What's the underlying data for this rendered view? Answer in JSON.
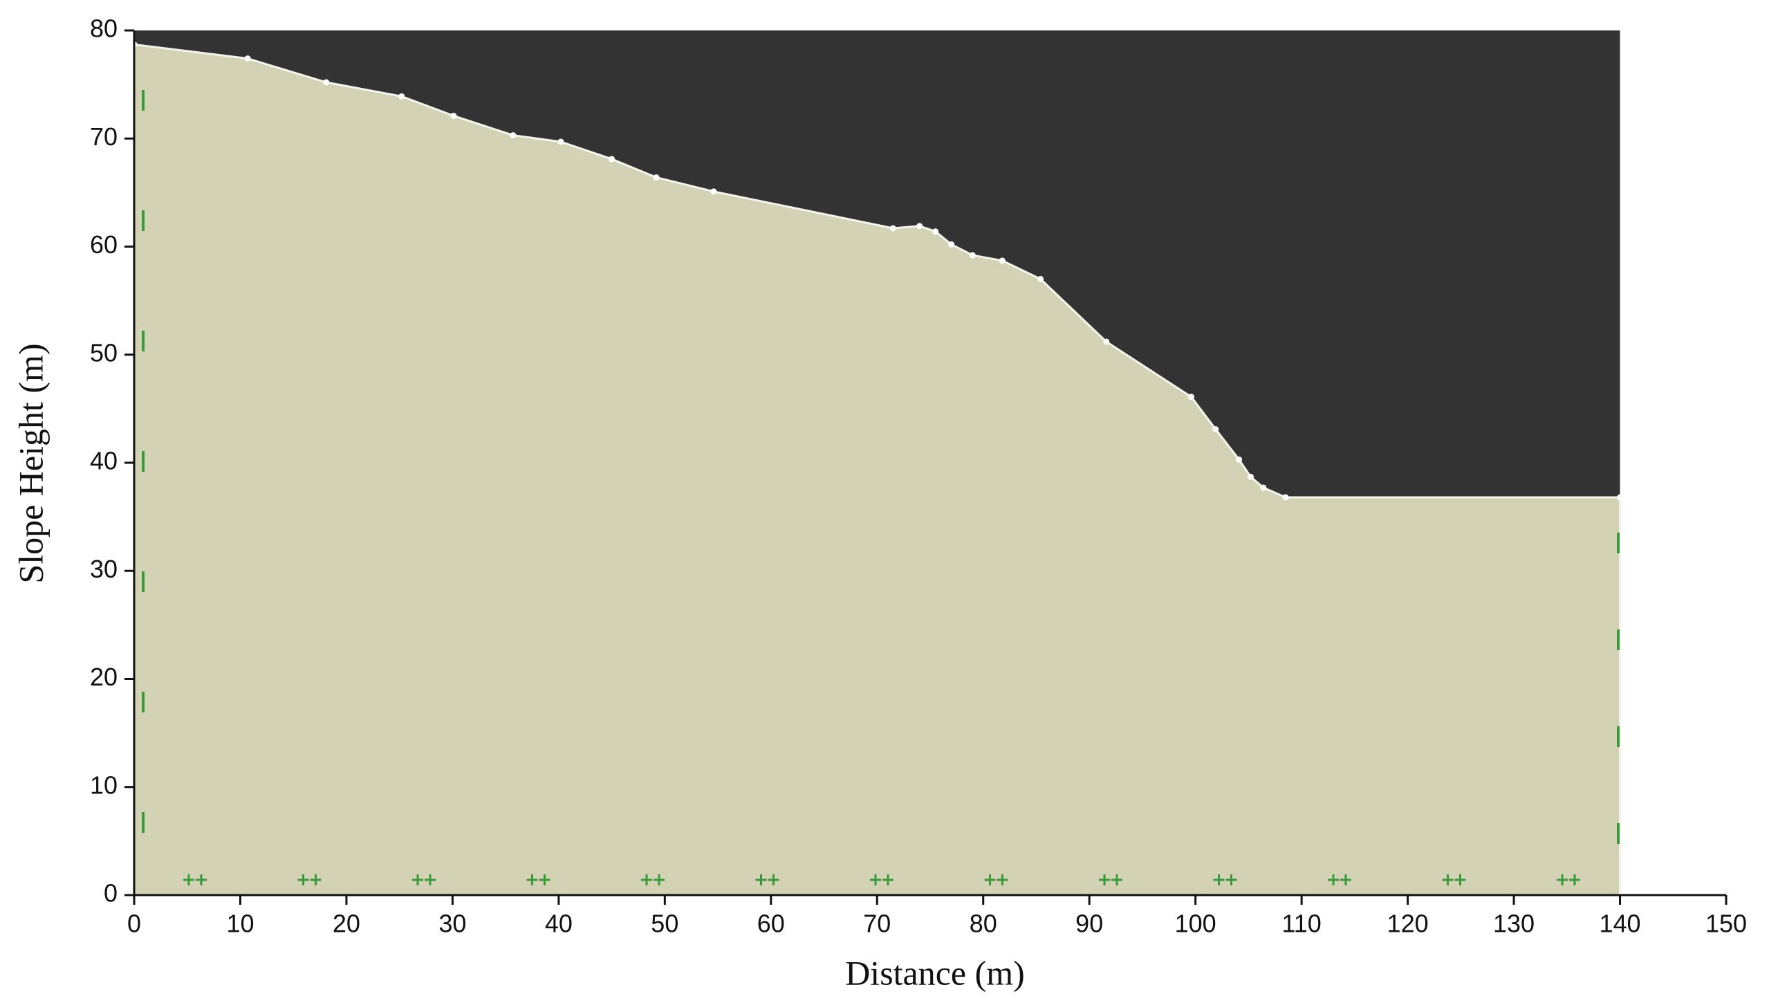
{
  "chart_data": {
    "type": "area",
    "x_label": "Distance (m)",
    "y_label": "Slope Height (m)",
    "x": [
      0,
      10.7,
      18.1,
      25.2,
      30.1,
      35.7,
      40.2,
      45,
      49.2,
      54.6,
      71.5,
      74,
      75.5,
      77,
      79,
      81.8,
      85.4,
      91.6,
      99.6,
      101.9,
      104.1,
      105.2,
      106.4,
      108.5,
      140
    ],
    "values": [
      78.7,
      77.4,
      75.2,
      73.9,
      72.1,
      70.3,
      69.7,
      68.1,
      66.4,
      65.1,
      61.7,
      61.9,
      61.4,
      60.2,
      59.2,
      58.7,
      57,
      51.2,
      46.1,
      43.1,
      40.3,
      38.7,
      37.7,
      36.8,
      36.8
    ],
    "color": "#d3d2b4",
    "xlim": [
      0,
      150
    ],
    "ylim": [
      0,
      80
    ],
    "xticks": [
      0,
      10,
      20,
      30,
      40,
      50,
      60,
      70,
      80,
      90,
      100,
      110,
      120,
      130,
      140,
      150
    ],
    "yticks": [
      0,
      10,
      20,
      30,
      40,
      50,
      60,
      70,
      80
    ]
  }
}
